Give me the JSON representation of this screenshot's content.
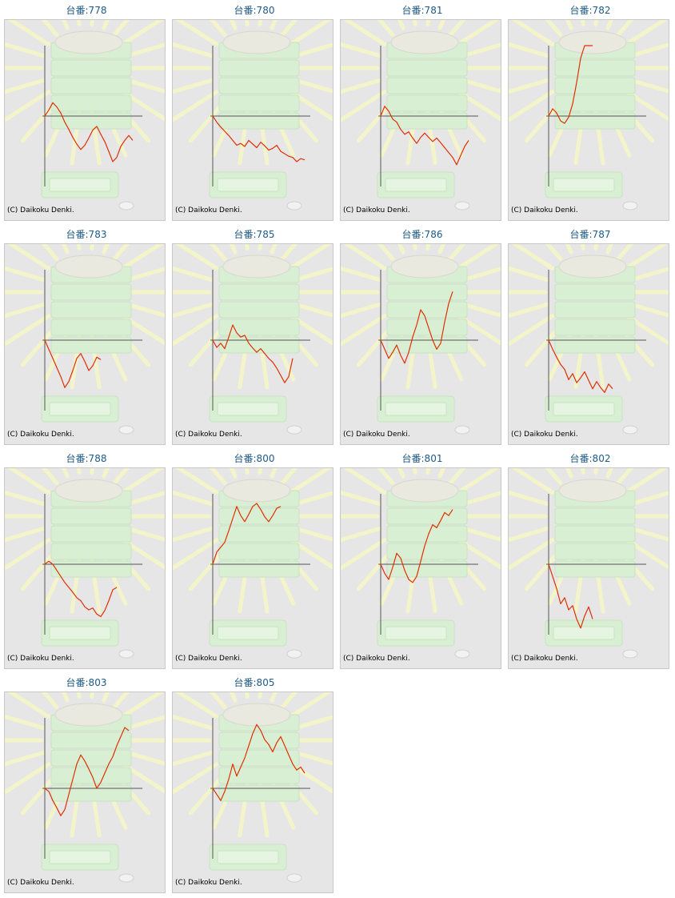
{
  "copyright": "(C) Daikoku Denki.",
  "colors": {
    "line": "#e03000",
    "axis": "#555555",
    "title": "#1e5a87",
    "panel_bg": "#e6e6e6"
  },
  "chart_data": [
    {
      "type": "line",
      "title": "台番:778",
      "values": [
        0,
        0.1,
        0.22,
        0.15,
        0.05,
        -0.1,
        -0.22,
        -0.35,
        -0.46,
        -0.55,
        -0.48,
        -0.36,
        -0.23,
        -0.17,
        -0.3,
        -0.42,
        -0.58,
        -0.75,
        -0.68,
        -0.5,
        -0.4,
        -0.32,
        -0.4
      ]
    },
    {
      "type": "line",
      "title": "台番:780",
      "values": [
        0,
        -0.1,
        -0.18,
        -0.25,
        -0.32,
        -0.4,
        -0.48,
        -0.45,
        -0.5,
        -0.4,
        -0.46,
        -0.52,
        -0.43,
        -0.49,
        -0.56,
        -0.53,
        -0.48,
        -0.58,
        -0.62,
        -0.66,
        -0.68,
        -0.75,
        -0.7,
        -0.72
      ]
    },
    {
      "type": "line",
      "title": "台番:781",
      "values": [
        0,
        0.16,
        0.08,
        -0.05,
        -0.1,
        -0.22,
        -0.3,
        -0.26,
        -0.36,
        -0.45,
        -0.35,
        -0.28,
        -0.35,
        -0.42,
        -0.36,
        -0.44,
        -0.52,
        -0.6,
        -0.68,
        -0.8,
        -0.65,
        -0.5,
        -0.4
      ]
    },
    {
      "type": "line",
      "title": "台番:782",
      "values": [
        0,
        0.12,
        0.05,
        -0.08,
        -0.12,
        -0.02,
        0.2,
        0.55,
        0.95,
        1.3,
        1.7,
        2.05
      ]
    },
    {
      "type": "line",
      "title": "台番:783",
      "values": [
        0,
        -0.15,
        -0.3,
        -0.45,
        -0.6,
        -0.78,
        -0.68,
        -0.5,
        -0.3,
        -0.22,
        -0.35,
        -0.5,
        -0.42,
        -0.28,
        -0.32
      ]
    },
    {
      "type": "line",
      "title": "台番:785",
      "values": [
        0,
        -0.12,
        -0.05,
        -0.14,
        0.05,
        0.25,
        0.12,
        0.05,
        0.08,
        -0.05,
        -0.13,
        -0.2,
        -0.14,
        -0.22,
        -0.3,
        -0.36,
        -0.46,
        -0.58,
        -0.7,
        -0.6,
        -0.3
      ]
    },
    {
      "type": "line",
      "title": "台番:786",
      "values": [
        0,
        -0.15,
        -0.3,
        -0.2,
        -0.08,
        -0.25,
        -0.38,
        -0.2,
        0.05,
        0.25,
        0.5,
        0.4,
        0.2,
        0.0,
        -0.15,
        -0.05,
        0.3,
        0.6,
        0.8
      ]
    },
    {
      "type": "line",
      "title": "台番:787",
      "values": [
        0,
        -0.15,
        -0.28,
        -0.4,
        -0.48,
        -0.65,
        -0.55,
        -0.7,
        -0.62,
        -0.52,
        -0.66,
        -0.8,
        -0.68,
        -0.78,
        -0.86,
        -0.72,
        -0.8
      ]
    },
    {
      "type": "line",
      "title": "台番:788",
      "values": [
        0,
        0.05,
        0.0,
        -0.1,
        -0.2,
        -0.3,
        -0.38,
        -0.46,
        -0.55,
        -0.6,
        -0.7,
        -0.75,
        -0.72,
        -0.82,
        -0.86,
        -0.76,
        -0.6,
        -0.42,
        -0.38
      ]
    },
    {
      "type": "line",
      "title": "台番:800",
      "values": [
        0,
        0.2,
        0.28,
        0.36,
        0.55,
        0.75,
        0.95,
        0.8,
        0.7,
        0.82,
        0.95,
        1.0,
        0.9,
        0.78,
        0.7,
        0.8,
        0.92,
        0.95
      ]
    },
    {
      "type": "line",
      "title": "台番:801",
      "values": [
        0,
        -0.15,
        -0.25,
        -0.05,
        0.18,
        0.1,
        -0.1,
        -0.25,
        -0.3,
        -0.2,
        0.05,
        0.3,
        0.5,
        0.65,
        0.6,
        0.72,
        0.85,
        0.8,
        0.9
      ]
    },
    {
      "type": "line",
      "title": "台番:802",
      "values": [
        0,
        -0.2,
        -0.4,
        -0.65,
        -0.55,
        -0.75,
        -0.68,
        -0.9,
        -1.05,
        -0.85,
        -0.7,
        -0.9
      ]
    },
    {
      "type": "line",
      "title": "台番:803",
      "values": [
        0,
        -0.05,
        -0.2,
        -0.32,
        -0.45,
        -0.35,
        -0.1,
        0.15,
        0.4,
        0.55,
        0.45,
        0.32,
        0.18,
        0.0,
        0.1,
        0.25,
        0.4,
        0.52,
        0.7,
        0.85,
        1.0,
        0.95
      ]
    },
    {
      "type": "line",
      "title": "台番:805",
      "values": [
        0,
        -0.1,
        -0.2,
        -0.05,
        0.15,
        0.4,
        0.2,
        0.35,
        0.5,
        0.7,
        0.9,
        1.05,
        0.95,
        0.8,
        0.72,
        0.6,
        0.75,
        0.85,
        0.7,
        0.55,
        0.4,
        0.3,
        0.35,
        0.25
      ]
    }
  ]
}
